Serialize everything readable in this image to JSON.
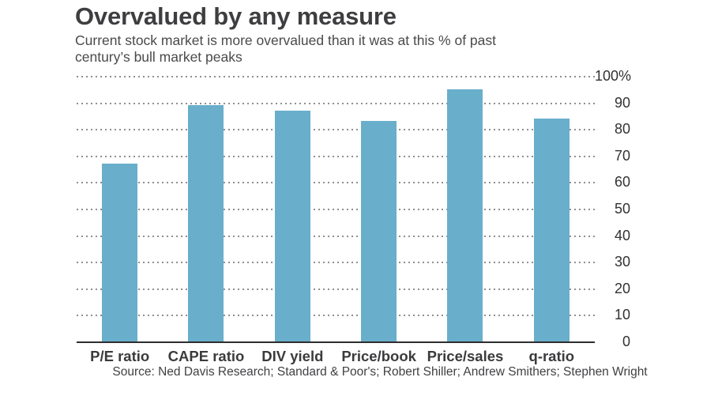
{
  "chart_data": {
    "type": "bar",
    "title": "Overvalued by any measure",
    "subtitle": "Current stock market is more overvalued than it was at this % of past century’s bull market peaks",
    "subtitle_lines": [
      "Current stock market is more overvalued than it was at this % of past",
      "century’s bull market peaks"
    ],
    "categories": [
      "P/E ratio",
      "CAPE ratio",
      "DIV yield",
      "Price/book",
      "Price/sales",
      "q-ratio"
    ],
    "values": [
      67,
      89,
      87,
      83,
      95,
      84
    ],
    "xlabel": "",
    "ylabel": "",
    "ylim": [
      0,
      100
    ],
    "ytick_interval": 10,
    "ytick_labels": [
      "100%",
      "90",
      "80",
      "70",
      "60",
      "50",
      "40",
      "30",
      "20",
      "10",
      "0"
    ],
    "grid": "horizontal-dotted",
    "legend": "none",
    "bar_color": "#69aecb",
    "axis_line_color": "#2e2e2e",
    "gridline_color": "#8f8f8f",
    "source": "Source: Ned Davis Research; Standard & Poor's; Robert Shiller; Andrew Smithers; Stephen Wright"
  }
}
